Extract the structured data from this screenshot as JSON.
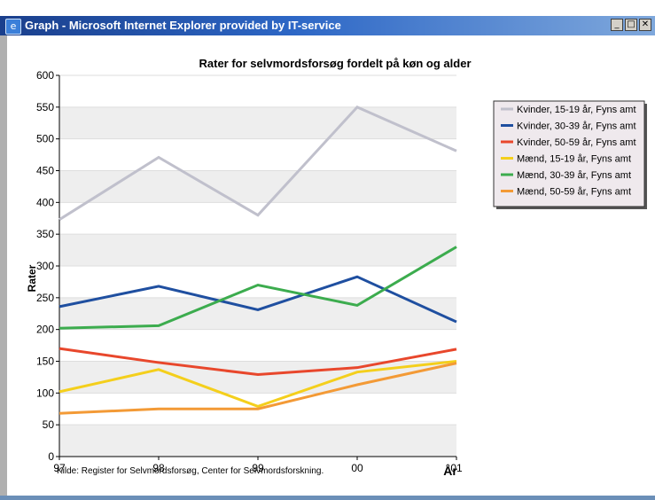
{
  "window": {
    "title": "Graph - Microsoft Internet Explorer provided by IT-service",
    "minimize_glyph": "_",
    "maximize_glyph": "□",
    "close_glyph": "✕",
    "app_icon": "internet-explorer-icon"
  },
  "source_note": "Kilde: Register for Selvmordsforsøg, Center for Selvmordsforskning.",
  "chart_data": {
    "type": "line",
    "title": "Rater for selvmordsforsøg fordelt på køn og alder",
    "xlabel": "År",
    "ylabel": "Rater",
    "categories": [
      "97",
      "98",
      "99",
      "00",
      "01"
    ],
    "ylim": [
      0,
      600
    ],
    "yticks": [
      0,
      50,
      100,
      150,
      200,
      250,
      300,
      350,
      400,
      450,
      500,
      550,
      600
    ],
    "grid": "alternating horizontal bands",
    "legend_position": "right",
    "series": [
      {
        "name": "Kvinder, 15-19 år, Fyns amt",
        "color": "#c0c0cc",
        "values": [
          373,
          471,
          380,
          550,
          481
        ]
      },
      {
        "name": "Kvinder, 30-39 år, Fyns amt",
        "color": "#1f4fa0",
        "values": [
          236,
          268,
          231,
          283,
          212
        ]
      },
      {
        "name": "Kvinder, 50-59 år, Fyns amt",
        "color": "#e8472c",
        "values": [
          170,
          148,
          129,
          140,
          169
        ]
      },
      {
        "name": "Mænd, 15-19 år, Fyns amt",
        "color": "#f4cf1c",
        "values": [
          102,
          137,
          79,
          133,
          150
        ]
      },
      {
        "name": "Mænd, 30-39 år, Fyns amt",
        "color": "#3cac4e",
        "values": [
          202,
          206,
          270,
          238,
          330
        ]
      },
      {
        "name": "Mænd, 50-59 år, Fyns amt",
        "color": "#f39a36",
        "values": [
          68,
          75,
          75,
          113,
          147
        ]
      }
    ]
  }
}
